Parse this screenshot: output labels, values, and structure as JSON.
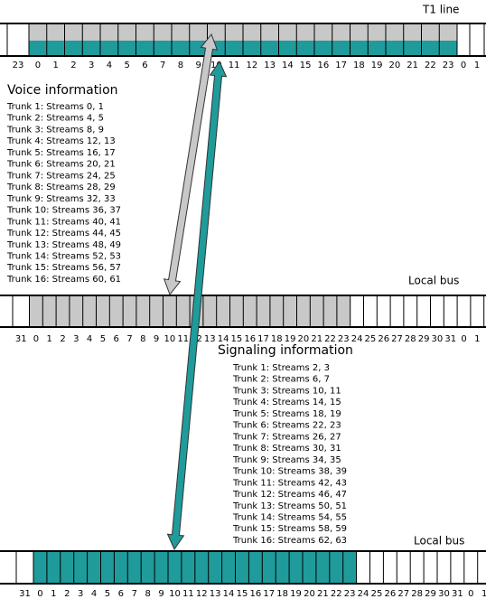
{
  "t1_line": {
    "label": "T1 line",
    "slots": [
      "23",
      "0",
      "1",
      "2",
      "3",
      "4",
      "5",
      "6",
      "7",
      "8",
      "9",
      "10",
      "11",
      "12",
      "13",
      "14",
      "15",
      "16",
      "17",
      "18",
      "19",
      "20",
      "21",
      "22",
      "23",
      "0",
      "1"
    ]
  },
  "voice": {
    "title": "Voice information",
    "trunks": [
      "Trunk 1: Streams 0, 1",
      "Trunk 2: Streams 4, 5",
      "Trunk 3: Streams 8, 9",
      "Trunk 4: Streams 12, 13",
      "Trunk 5: Streams 16, 17",
      "Trunk 6: Streams 20, 21",
      "Trunk 7: Streams 24, 25",
      "Trunk 8: Streams 28, 29",
      "Trunk 9: Streams 32, 33",
      "Trunk 10: Streams 36, 37",
      "Trunk 11: Streams 40, 41",
      "Trunk 12: Streams 44, 45",
      "Trunk 13: Streams 48, 49",
      "Trunk 14: Streams 52, 53",
      "Trunk 15: Streams 56, 57",
      "Trunk 16: Streams 60, 61"
    ]
  },
  "local_bus_1": {
    "label": "Local bus",
    "slots": [
      "31",
      "0",
      "1",
      "2",
      "3",
      "4",
      "5",
      "6",
      "7",
      "8",
      "9",
      "10",
      "11",
      "12",
      "13",
      "14",
      "15",
      "16",
      "17",
      "18",
      "19",
      "20",
      "21",
      "22",
      "23",
      "24",
      "25",
      "26",
      "27",
      "28",
      "29",
      "30",
      "31",
      "0",
      "1"
    ]
  },
  "signaling": {
    "title": "Signaling information",
    "trunks": [
      "Trunk 1: Streams 2, 3",
      "Trunk 2: Streams 6, 7",
      "Trunk 3: Streams 10, 11",
      "Trunk 4: Streams 14, 15",
      "Trunk 5: Streams 18, 19",
      "Trunk 6: Streams 22, 23",
      "Trunk 7: Streams 26, 27",
      "Trunk 8: Streams 30, 31",
      "Trunk 9: Streams 34, 35",
      "Trunk 10: Streams 38, 39",
      "Trunk 11: Streams 42, 43",
      "Trunk 12: Streams 46, 47",
      "Trunk 13: Streams 50, 51",
      "Trunk 14: Streams 54, 55",
      "Trunk 15: Streams 58, 59",
      "Trunk 16: Streams 62, 63"
    ]
  },
  "local_bus_2": {
    "label": "Local bus",
    "slots": [
      "31",
      "0",
      "1",
      "2",
      "3",
      "4",
      "5",
      "6",
      "7",
      "8",
      "9",
      "10",
      "11",
      "12",
      "13",
      "14",
      "15",
      "16",
      "17",
      "18",
      "19",
      "20",
      "21",
      "22",
      "23",
      "24",
      "25",
      "26",
      "27",
      "28",
      "29",
      "30",
      "31",
      "0",
      "1"
    ]
  }
}
